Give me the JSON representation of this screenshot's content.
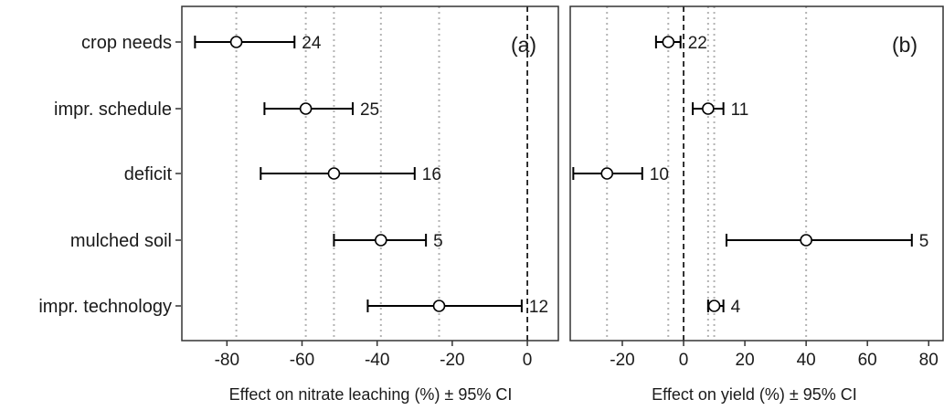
{
  "chart_data": {
    "type": "forest",
    "categories": [
      "crop needs",
      "impr. schedule",
      "deficit",
      "mulched soil",
      "impr. technology"
    ],
    "panels": [
      {
        "tag": "(a)",
        "xlabel": "Effect on nitrate leaching (%) ± 95% CI",
        "xlim": [
          -92,
          8.5
        ],
        "xticks": [
          -80,
          -60,
          -40,
          -20,
          0
        ],
        "dotted_gridlines": [
          -77.5,
          -59,
          -51.5,
          -39,
          -23.5
        ],
        "zero_line": 0,
        "points": [
          {
            "category": "crop needs",
            "estimate": -77.5,
            "ci_low": -88.5,
            "ci_high": -62,
            "n": "24"
          },
          {
            "category": "impr. schedule",
            "estimate": -59,
            "ci_low": -70,
            "ci_high": -46.5,
            "n": "25"
          },
          {
            "category": "deficit",
            "estimate": -51.5,
            "ci_low": -71,
            "ci_high": -30,
            "n": "16"
          },
          {
            "category": "mulched soil",
            "estimate": -39,
            "ci_low": -51.5,
            "ci_high": -27,
            "n": "5"
          },
          {
            "category": "impr. technology",
            "estimate": -23.5,
            "ci_low": -42.5,
            "ci_high": -1.5,
            "n": "12"
          }
        ]
      },
      {
        "tag": "(b)",
        "xlabel": "Effect on yield (%) ± 95% CI",
        "xlim": [
          -37,
          85
        ],
        "xticks": [
          -20,
          0,
          20,
          40,
          60,
          80
        ],
        "tick_labels_visible": [
          "-20",
          "0",
          "20",
          "40",
          "60",
          "80"
        ],
        "dotted_gridlines": [
          -25,
          -5,
          8,
          10,
          40
        ],
        "zero_line": 0,
        "points": [
          {
            "category": "crop needs",
            "estimate": -5,
            "ci_low": -9,
            "ci_high": -1,
            "n": "22"
          },
          {
            "category": "impr. schedule",
            "estimate": 8,
            "ci_low": 3,
            "ci_high": 13,
            "n": "11"
          },
          {
            "category": "deficit",
            "estimate": -25,
            "ci_low": -36,
            "ci_high": -13.5,
            "n": "10"
          },
          {
            "category": "mulched soil",
            "estimate": 40,
            "ci_low": 14,
            "ci_high": 74.5,
            "n": "5"
          },
          {
            "category": "impr. technology",
            "estimate": 10,
            "ci_low": 8,
            "ci_high": 13,
            "n": "4"
          }
        ]
      }
    ],
    "grid": "dotted vertical reference lines at each panel's point estimates",
    "legend": "none"
  }
}
